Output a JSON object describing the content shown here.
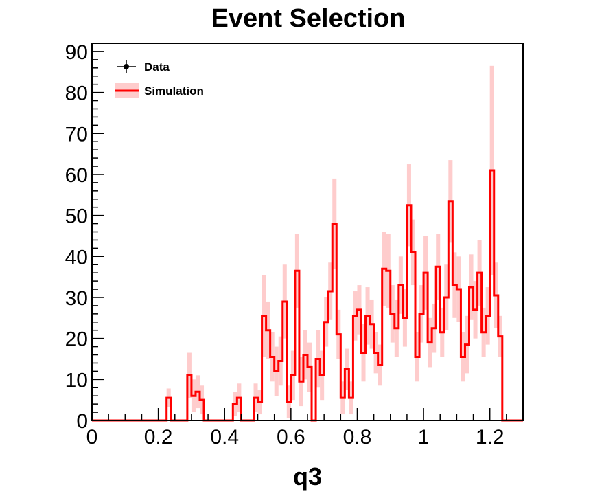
{
  "chart_data": {
    "type": "histogram",
    "title": "Event Selection",
    "xlabel": "q3",
    "ylabel": "",
    "xlim": [
      0,
      1.3
    ],
    "ylim": [
      0,
      92
    ],
    "xticks": [
      "0",
      "0.2",
      "0.4",
      "0.6",
      "0.8",
      "1",
      "1.2"
    ],
    "yticks": [
      "0",
      "10",
      "20",
      "30",
      "40",
      "50",
      "60",
      "70",
      "80",
      "90"
    ],
    "bin_width": 0.0125,
    "series": [
      {
        "name": "Data",
        "values": []
      },
      {
        "name": "Simulation",
        "color": "#ff0000",
        "band_color": "#fecccc",
        "values": [
          0,
          0,
          0,
          0,
          0,
          0,
          0,
          0,
          0,
          0,
          0,
          0,
          0,
          0,
          0,
          0,
          0,
          0,
          5.5,
          0,
          0,
          0,
          0,
          11,
          6,
          7,
          5,
          0,
          0,
          0,
          0,
          0,
          0,
          0,
          4,
          5.5,
          0,
          0,
          0,
          5.5,
          4.5,
          25.5,
          22,
          15.5,
          12,
          14.5,
          29,
          4.5,
          11,
          36.5,
          9.5,
          16,
          13,
          0,
          15,
          11,
          24,
          31.5,
          48,
          21,
          5.5,
          12.5,
          5.5,
          25.5,
          27,
          16.5,
          25.5,
          23.5,
          16.5,
          13.5,
          37,
          36.5,
          26,
          22.5,
          33,
          25,
          52.5,
          41,
          15.5,
          26,
          36,
          19,
          22.5,
          37.5,
          21.5,
          30,
          53.5,
          33,
          32,
          15.5,
          18.5,
          32.5,
          27,
          36,
          21.5,
          25.5,
          61,
          30.5,
          20.5,
          0,
          0,
          0,
          0,
          0
        ],
        "errors": [
          0,
          0,
          0,
          0,
          0,
          0,
          0,
          0,
          0,
          0,
          0,
          0,
          0,
          0,
          0,
          0,
          0,
          0,
          2.3,
          0,
          0,
          0,
          0,
          5.5,
          4,
          4,
          3.5,
          0,
          0,
          0,
          0,
          0,
          0,
          0,
          3,
          3.5,
          0,
          0,
          0,
          3.5,
          3,
          10,
          7,
          6,
          6,
          6,
          9,
          4,
          6,
          9,
          6,
          6,
          6,
          0,
          7,
          6,
          6,
          7,
          11,
          6,
          4,
          5,
          4,
          6,
          6,
          7,
          7,
          6,
          5,
          5,
          9,
          9,
          7,
          7,
          7,
          7,
          10,
          8,
          6,
          7,
          9,
          6,
          6,
          8,
          6,
          8,
          10,
          8,
          8,
          6,
          7,
          8,
          7,
          8,
          6,
          7,
          25.5,
          8,
          5,
          0,
          0,
          0,
          0,
          0
        ]
      }
    ],
    "legend": {
      "placement": "top-left"
    }
  }
}
